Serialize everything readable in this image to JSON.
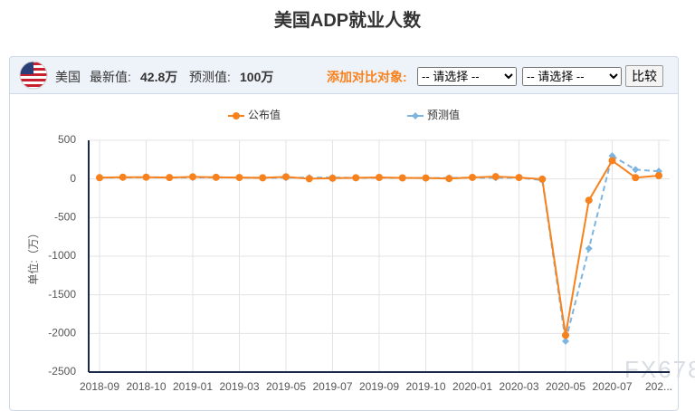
{
  "header": {
    "title": "美国ADP就业人数"
  },
  "toolbar": {
    "country": "美国",
    "latest_label": "最新值:",
    "latest_value": "42.8万",
    "forecast_label": "预测值:",
    "forecast_value": "100万",
    "compare_label": "添加对比对象:",
    "select_1": "-- 请选择 --",
    "select_2": "-- 请选择 --",
    "button": "比较"
  },
  "watermark": "FX678",
  "chart_data": {
    "type": "line",
    "y_label": "单位:（万）",
    "categories": [
      "2018-09",
      null,
      "2018-10",
      null,
      "2019-01",
      null,
      "2019-03",
      null,
      "2019-05",
      null,
      "2019-07",
      null,
      "2019-09",
      null,
      "2019-10",
      null,
      "2020-01",
      null,
      "2020-03",
      null,
      "2020-05",
      null,
      "2020-07",
      null,
      "202..."
    ],
    "series": [
      {
        "name": "公布值",
        "color": "#f7821d",
        "marker": "circle",
        "dashed": false,
        "values": [
          16.3,
          22.7,
          22.7,
          17.9,
          27.1,
          21.3,
          18.3,
          15.0,
          27.5,
          2.7,
          9.7,
          15.6,
          19.5,
          13.5,
          12.5,
          5.4,
          20.2,
          29.1,
          18.3,
          -2.7,
          -2023.6,
          -276.0,
          236.9,
          16.7,
          42.8
        ]
      },
      {
        "name": "预测值",
        "color": "#7db4e0",
        "marker": "diamond",
        "dashed": true,
        "values": [
          18.5,
          18.5,
          22.5,
          19.0,
          18.0,
          22.0,
          17.5,
          14.0,
          17.0,
          17.0,
          18.0,
          14.0,
          15.0,
          14.0,
          12.0,
          13.5,
          16.0,
          15.5,
          14.8,
          -15.0,
          -2100,
          -900,
          300,
          120,
          100
        ]
      }
    ],
    "ylim": [
      -2500,
      500
    ],
    "yticks": [
      500,
      0,
      -500,
      -1000,
      -1500,
      -2000,
      -2500
    ],
    "grid": true
  }
}
